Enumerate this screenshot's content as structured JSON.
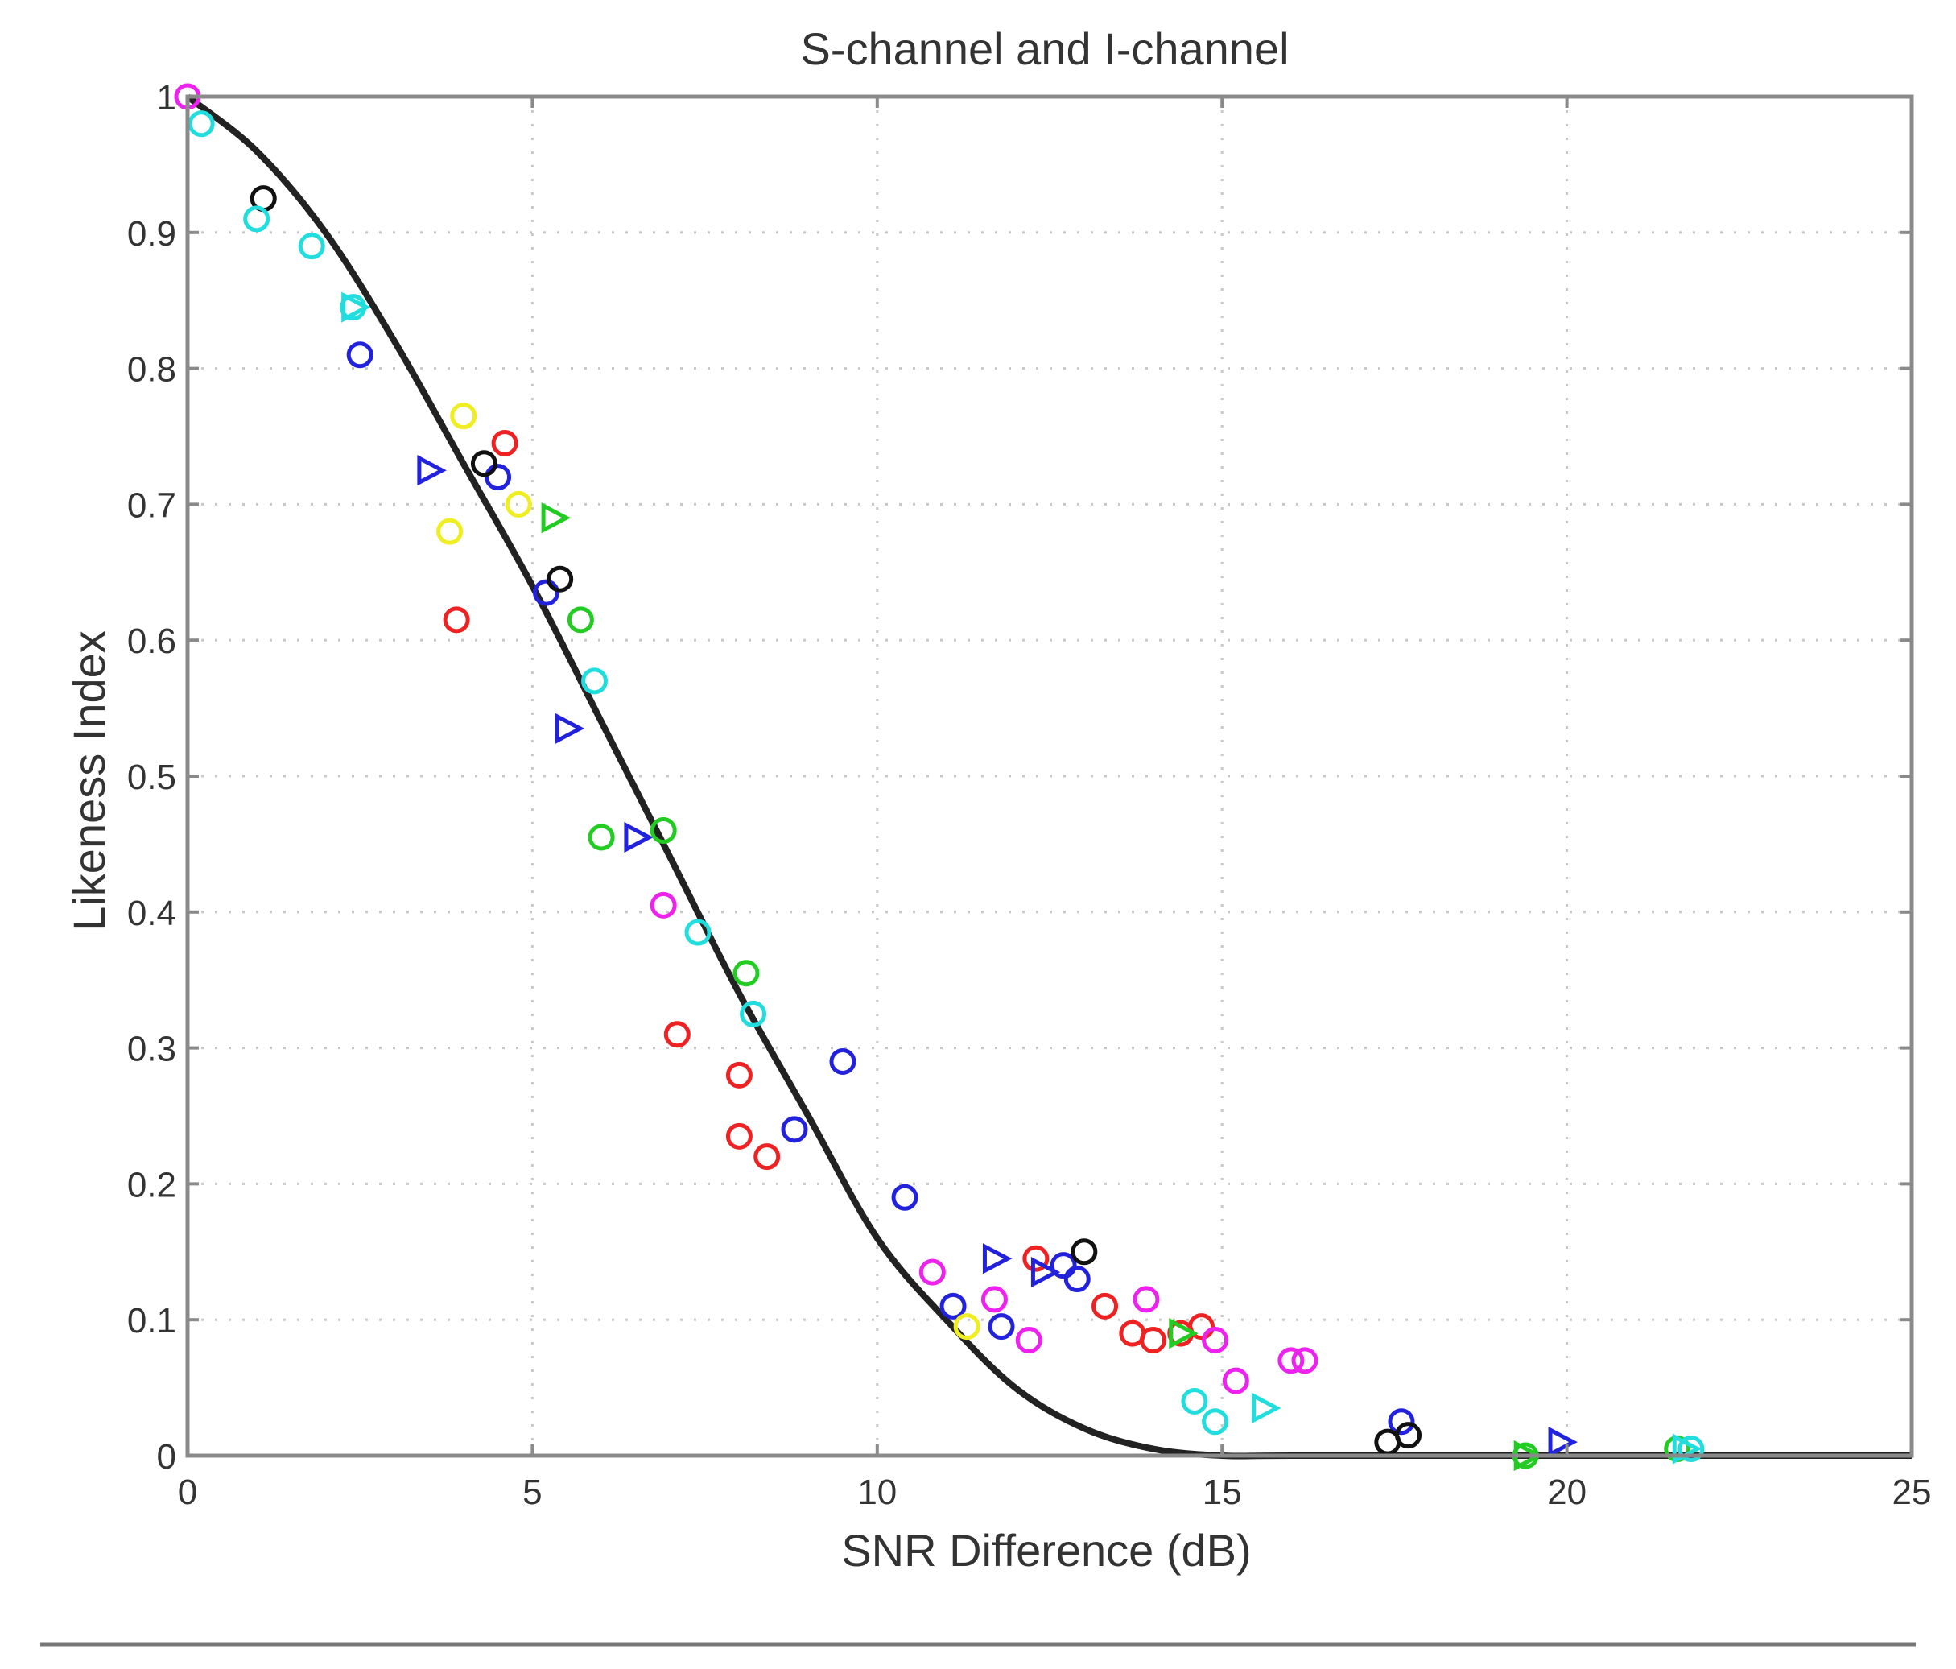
{
  "chart_data": {
    "type": "scatter",
    "title": "S-channel and I-channel",
    "xlabel": "SNR Difference (dB)",
    "ylabel": "Likeness Index",
    "xlim": [
      0,
      25
    ],
    "ylim": [
      0,
      1
    ],
    "xticks": [
      0,
      5,
      10,
      15,
      20,
      25
    ],
    "xtick_labels": [
      "0",
      "5",
      "10",
      "15",
      "20",
      "25"
    ],
    "yticks": [
      0,
      0.1,
      0.2,
      0.3,
      0.4,
      0.5,
      0.6,
      0.7,
      0.8,
      0.9,
      1
    ],
    "ytick_labels": [
      "0",
      "0.1",
      "0.2",
      "0.3",
      "0.4",
      "0.5",
      "0.6",
      "0.7",
      "0.8",
      "0.9",
      "1"
    ],
    "grid": true,
    "legend": "none",
    "fit_curve": {
      "color": "#222222",
      "points": [
        [
          0,
          1.0
        ],
        [
          1,
          0.96
        ],
        [
          2,
          0.9
        ],
        [
          3,
          0.82
        ],
        [
          4,
          0.73
        ],
        [
          5,
          0.64
        ],
        [
          6,
          0.54
        ],
        [
          7,
          0.44
        ],
        [
          8,
          0.34
        ],
        [
          9,
          0.25
        ],
        [
          10,
          0.16
        ],
        [
          11,
          0.1
        ],
        [
          12,
          0.05
        ],
        [
          13,
          0.02
        ],
        [
          14,
          0.005
        ],
        [
          15,
          0.0
        ],
        [
          16,
          0.0
        ],
        [
          20,
          0.0
        ],
        [
          25,
          0.0
        ]
      ]
    },
    "series": [
      {
        "color": "#ee2222",
        "marker": "circle",
        "points": [
          [
            3.9,
            0.615
          ],
          [
            4.6,
            0.745
          ],
          [
            7.1,
            0.31
          ],
          [
            8.0,
            0.28
          ],
          [
            8.0,
            0.235
          ],
          [
            8.4,
            0.22
          ],
          [
            12.3,
            0.145
          ],
          [
            13.3,
            0.11
          ],
          [
            13.7,
            0.09
          ],
          [
            14.0,
            0.085
          ],
          [
            14.4,
            0.09
          ],
          [
            14.7,
            0.095
          ]
        ]
      },
      {
        "color": "#2222dd",
        "marker": "circle",
        "points": [
          [
            2.5,
            0.81
          ],
          [
            4.5,
            0.72
          ],
          [
            5.2,
            0.635
          ],
          [
            8.8,
            0.24
          ],
          [
            9.5,
            0.29
          ],
          [
            10.4,
            0.19
          ],
          [
            11.1,
            0.11
          ],
          [
            11.8,
            0.095
          ],
          [
            12.7,
            0.14
          ],
          [
            12.9,
            0.13
          ],
          [
            17.6,
            0.025
          ]
        ]
      },
      {
        "color": "#2222dd",
        "marker": "triangle",
        "points": [
          [
            3.5,
            0.725
          ],
          [
            5.5,
            0.535
          ],
          [
            6.5,
            0.455
          ],
          [
            11.7,
            0.145
          ],
          [
            12.4,
            0.135
          ],
          [
            19.9,
            0.01
          ]
        ]
      },
      {
        "color": "#111111",
        "marker": "circle",
        "points": [
          [
            1.1,
            0.925
          ],
          [
            4.3,
            0.73
          ],
          [
            5.4,
            0.645
          ],
          [
            13.0,
            0.15
          ],
          [
            17.4,
            0.01
          ],
          [
            17.7,
            0.015
          ]
        ]
      },
      {
        "color": "#ee22ee",
        "marker": "circle",
        "points": [
          [
            0.0,
            1.0
          ],
          [
            6.9,
            0.405
          ],
          [
            10.8,
            0.135
          ],
          [
            11.7,
            0.115
          ],
          [
            12.2,
            0.085
          ],
          [
            13.9,
            0.115
          ],
          [
            14.9,
            0.085
          ],
          [
            15.2,
            0.055
          ],
          [
            16.0,
            0.07
          ],
          [
            16.2,
            0.07
          ]
        ]
      },
      {
        "color": "#22cc22",
        "marker": "circle",
        "points": [
          [
            5.7,
            0.615
          ],
          [
            6.0,
            0.455
          ],
          [
            6.9,
            0.46
          ],
          [
            8.1,
            0.355
          ],
          [
            19.4,
            0.0
          ],
          [
            21.6,
            0.005
          ]
        ]
      },
      {
        "color": "#22cc22",
        "marker": "triangle",
        "points": [
          [
            5.3,
            0.69
          ],
          [
            14.4,
            0.09
          ],
          [
            19.4,
            0.0
          ]
        ]
      },
      {
        "color": "#22dddd",
        "marker": "circle",
        "points": [
          [
            0.2,
            0.98
          ],
          [
            1.0,
            0.91
          ],
          [
            1.8,
            0.89
          ],
          [
            2.4,
            0.845
          ],
          [
            5.9,
            0.57
          ],
          [
            7.4,
            0.385
          ],
          [
            8.2,
            0.325
          ],
          [
            14.6,
            0.04
          ],
          [
            14.9,
            0.025
          ],
          [
            21.8,
            0.005
          ]
        ]
      },
      {
        "color": "#22dddd",
        "marker": "triangle",
        "points": [
          [
            2.4,
            0.845
          ],
          [
            15.6,
            0.035
          ],
          [
            21.7,
            0.005
          ]
        ]
      },
      {
        "color": "#eeee22",
        "marker": "circle",
        "points": [
          [
            3.8,
            0.68
          ],
          [
            4.0,
            0.765
          ],
          [
            4.8,
            0.7
          ],
          [
            11.3,
            0.095
          ]
        ]
      }
    ]
  }
}
